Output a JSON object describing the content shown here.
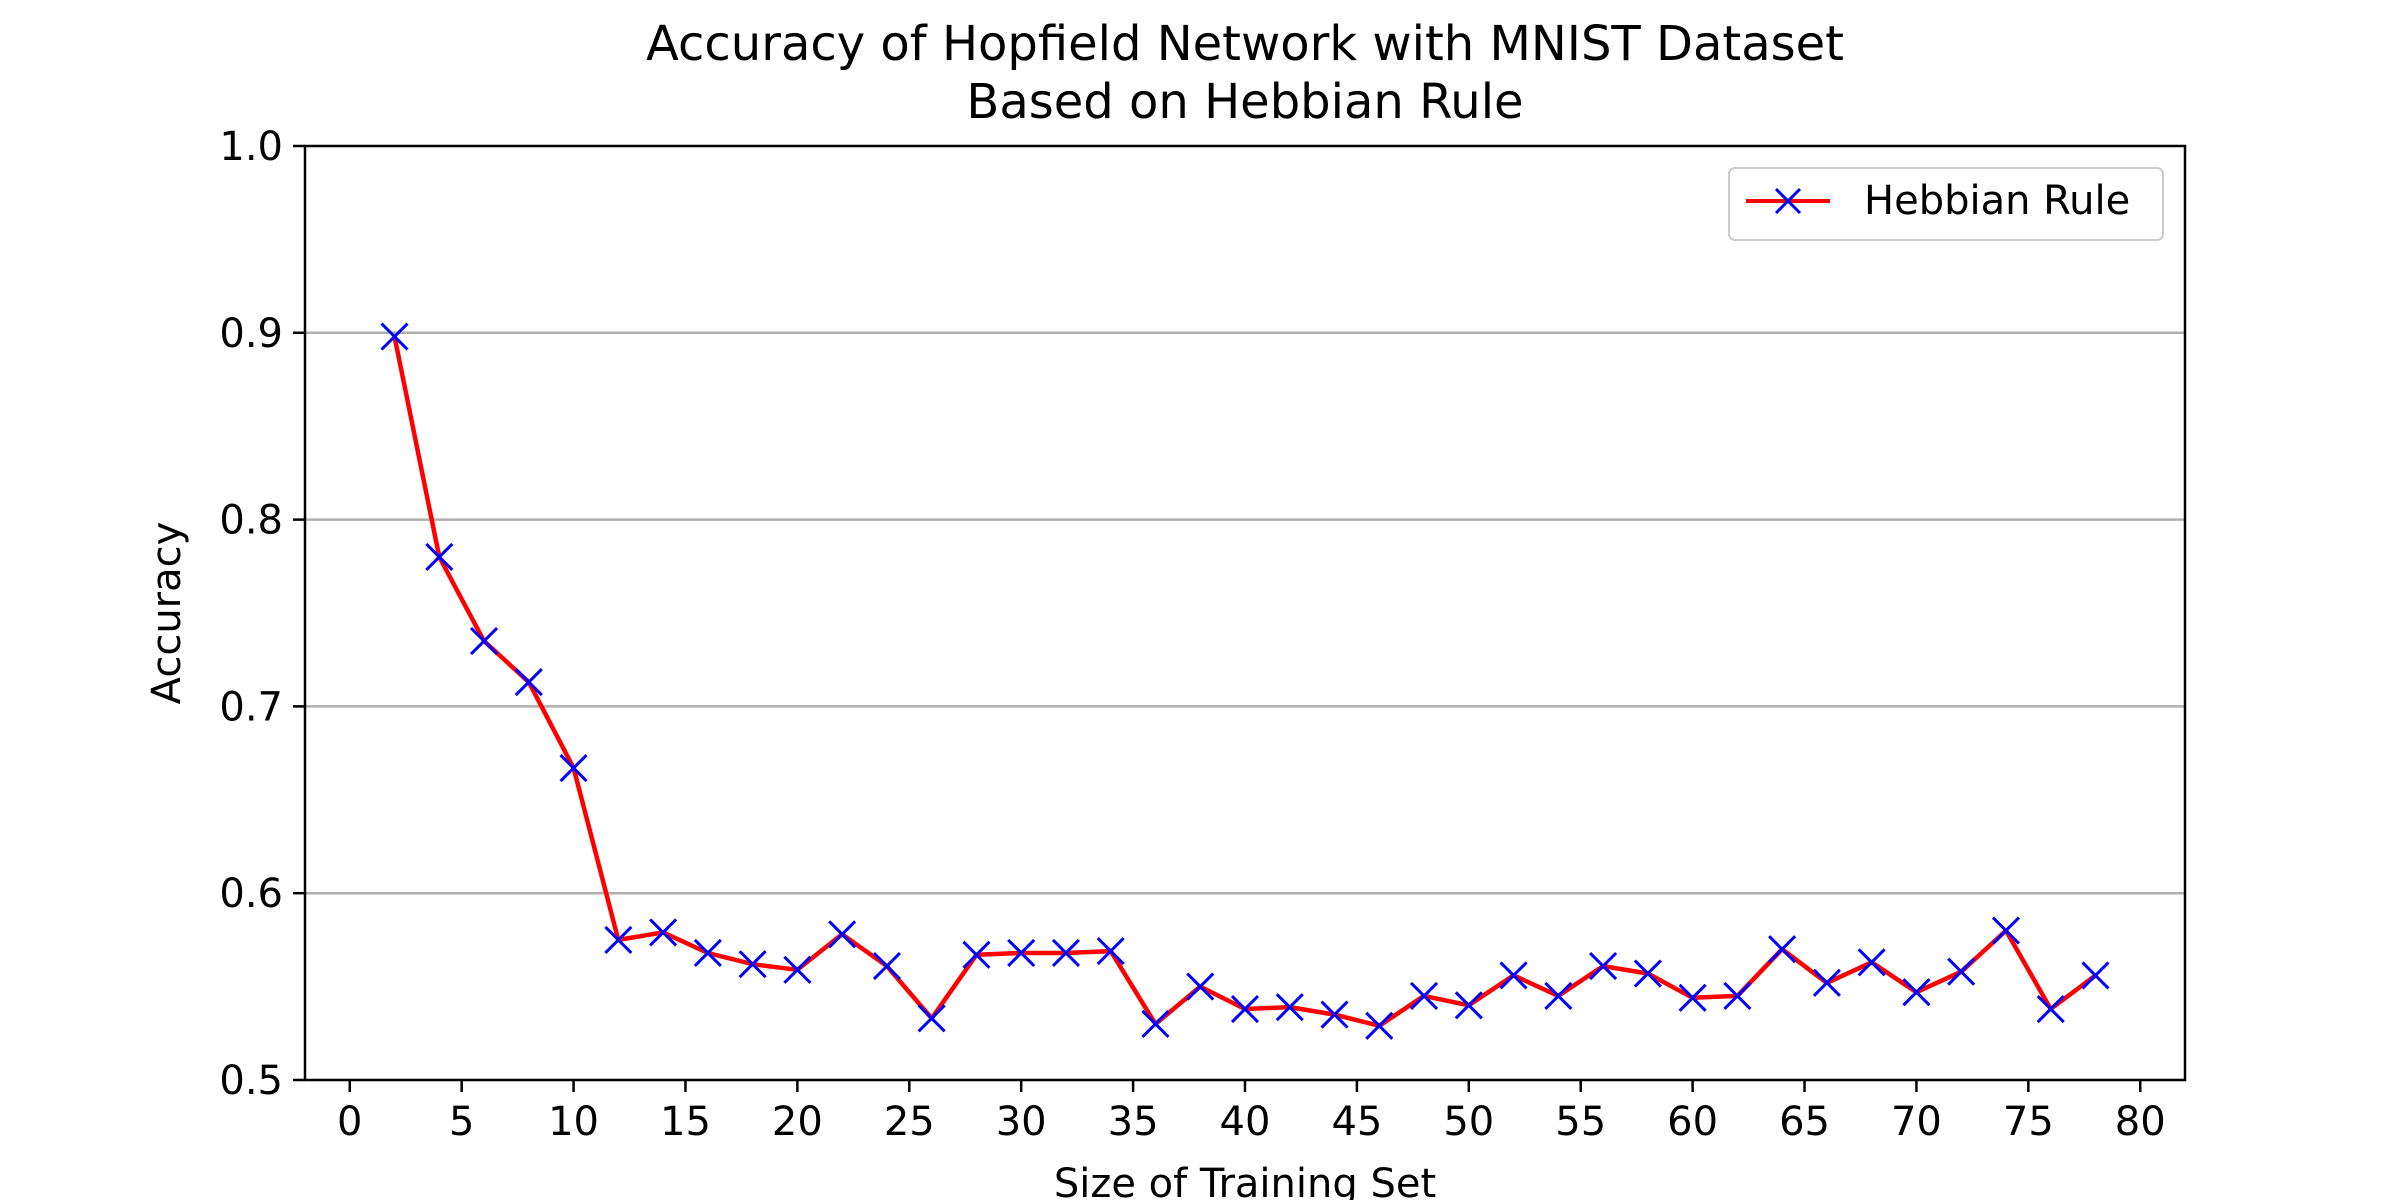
{
  "chart_data": {
    "type": "line",
    "title_lines": [
      "Accuracy of Hopfield Network with MNIST Dataset",
      "Based on Hebbian Rule"
    ],
    "xlabel": "Size of Training Set",
    "ylabel": "Accuracy",
    "xlim": [
      -2,
      82
    ],
    "ylim": [
      0.5,
      1.0
    ],
    "x_ticks": [
      0,
      5,
      10,
      15,
      20,
      25,
      30,
      35,
      40,
      45,
      50,
      55,
      60,
      65,
      70,
      75,
      80
    ],
    "x_tick_labels": [
      "0",
      "5",
      "10",
      "15",
      "20",
      "25",
      "30",
      "35",
      "40",
      "45",
      "50",
      "55",
      "60",
      "65",
      "70",
      "75",
      "80"
    ],
    "y_ticks": [
      0.5,
      0.6,
      0.7,
      0.8,
      0.9,
      1.0
    ],
    "y_tick_labels": [
      "0.5",
      "0.6",
      "0.7",
      "0.8",
      "0.9",
      "1.0"
    ],
    "grid": "y",
    "legend_position": "top-right",
    "series": [
      {
        "name": "Hebbian Rule",
        "line_color": "#ff0000",
        "marker": "x",
        "marker_color": "#0000ff",
        "x": [
          2,
          4,
          6,
          8,
          10,
          12,
          14,
          16,
          18,
          20,
          22,
          24,
          26,
          28,
          30,
          32,
          34,
          36,
          38,
          40,
          42,
          44,
          46,
          48,
          50,
          52,
          54,
          56,
          58,
          60,
          62,
          64,
          66,
          68,
          70,
          72,
          74,
          76,
          78
        ],
        "y": [
          0.898,
          0.78,
          0.735,
          0.713,
          0.667,
          0.575,
          0.579,
          0.568,
          0.562,
          0.559,
          0.578,
          0.561,
          0.533,
          0.567,
          0.568,
          0.568,
          0.569,
          0.53,
          0.55,
          0.538,
          0.539,
          0.535,
          0.529,
          0.545,
          0.54,
          0.556,
          0.545,
          0.561,
          0.557,
          0.544,
          0.545,
          0.57,
          0.552,
          0.563,
          0.547,
          0.558,
          0.58,
          0.538,
          0.556
        ]
      }
    ]
  }
}
